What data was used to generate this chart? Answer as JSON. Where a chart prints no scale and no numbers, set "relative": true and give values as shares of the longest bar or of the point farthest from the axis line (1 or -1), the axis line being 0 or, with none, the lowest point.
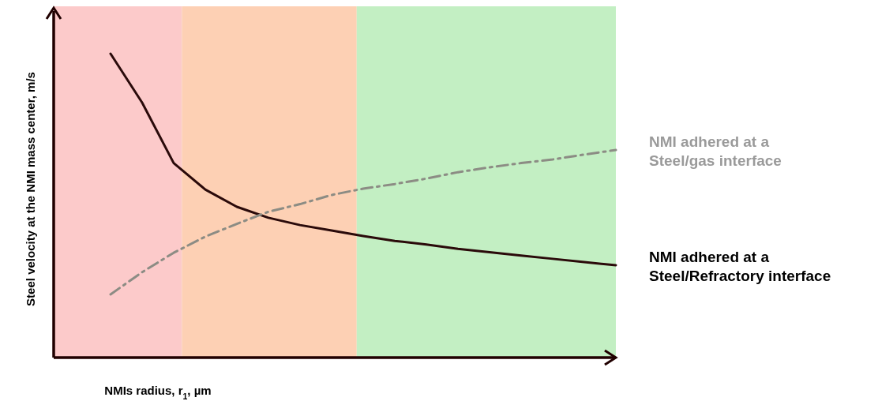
{
  "chart_data": {
    "type": "line",
    "relative": true,
    "xlabel": "NMIs radius, r$_{1}$, µm",
    "ylabel": "Steel velocity at the NMI mass center, m/s",
    "categories": [
      null,
      null,
      null,
      null,
      null,
      null,
      null,
      null,
      null,
      null,
      null,
      null,
      null,
      null,
      null,
      null,
      null
    ],
    "series": [
      {
        "name": "NMI adhered at a Steel/Refractory interface",
        "color": "#2a0a0a",
        "line_style": "solid",
        "values": [
          1.0,
          0.839,
          0.64,
          0.553,
          0.496,
          0.46,
          0.436,
          0.418,
          0.4,
          0.384,
          0.372,
          0.358,
          0.347,
          0.336,
          0.325,
          0.314,
          0.304
        ]
      },
      {
        "name": "NMI adhered at a Steel/gas interface",
        "color": "#8c8c84",
        "line_style": "dashed",
        "values": [
          0.208,
          0.281,
          0.345,
          0.398,
          0.44,
          0.48,
          0.505,
          0.535,
          0.556,
          0.571,
          0.589,
          0.61,
          0.626,
          0.64,
          0.652,
          0.668,
          0.683
        ]
      }
    ]
  }
}
